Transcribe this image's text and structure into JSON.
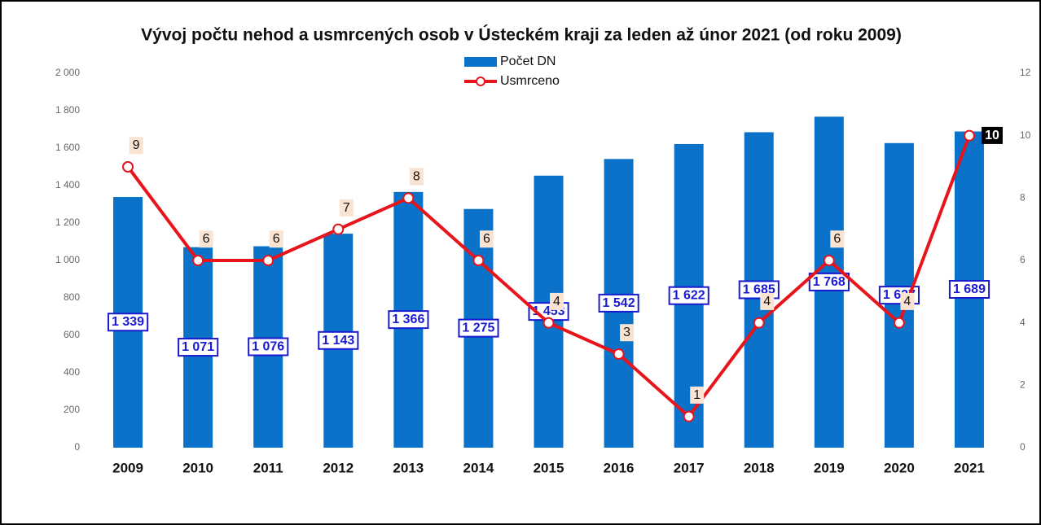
{
  "chart_data": {
    "type": "bar-line",
    "title": "Vývoj počtu nehod a usmrcených osob v Ústeckém kraji za leden až únor 2021 (od roku 2009)",
    "categories": [
      "2009",
      "2010",
      "2011",
      "2012",
      "2013",
      "2014",
      "2015",
      "2016",
      "2017",
      "2018",
      "2019",
      "2020",
      "2021"
    ],
    "series": [
      {
        "name": "Počet DN",
        "type": "bar",
        "color": "#0a72c9",
        "values": [
          1339,
          1071,
          1076,
          1143,
          1366,
          1275,
          1453,
          1542,
          1622,
          1685,
          1768,
          1627,
          1689
        ],
        "value_labels": [
          "1 339",
          "1 071",
          "1 076",
          "1 143",
          "1 366",
          "1 275",
          "1 453",
          "1 542",
          "1 622",
          "1 685",
          "1 768",
          "1 627",
          "1 689"
        ]
      },
      {
        "name": "Usmrceno",
        "type": "line",
        "axis": "y2",
        "color": "#e8141b",
        "values": [
          9,
          6,
          6,
          7,
          8,
          6,
          4,
          3,
          1,
          4,
          6,
          4,
          10
        ]
      }
    ],
    "ylim": [
      0,
      2000
    ],
    "yticks": [
      0,
      200,
      400,
      600,
      800,
      {
        "value": 1000,
        "label": "1 000"
      },
      {
        "value": 1200,
        "label": "1 200"
      },
      {
        "value": 1400,
        "label": "1 400"
      },
      {
        "value": 1600,
        "label": "1 600"
      },
      {
        "value": 1800,
        "label": "1 800"
      },
      {
        "value": 2000,
        "label": "2 000"
      }
    ],
    "y2lim": [
      0,
      12
    ],
    "y2ticks": [
      0,
      2,
      4,
      6,
      8,
      10,
      12
    ],
    "legend": "top"
  }
}
